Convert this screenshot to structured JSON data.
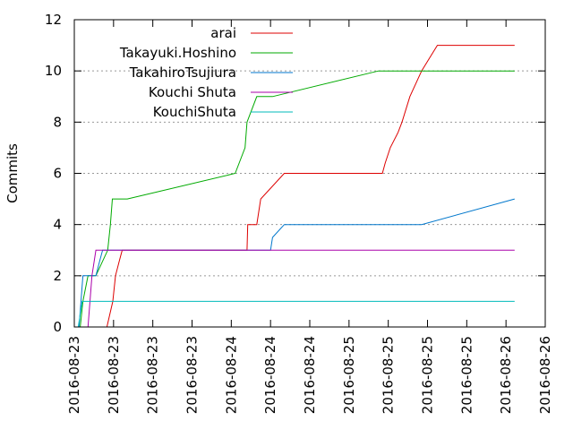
{
  "chart_data": {
    "type": "line",
    "ylabel": "Commits",
    "xlabel": "",
    "title": "",
    "ylim": [
      0,
      12
    ],
    "yticks": [
      0,
      2,
      4,
      6,
      8,
      10,
      12
    ],
    "xticks": [
      "2016-08-23",
      "2016-08-23",
      "2016-08-23",
      "2016-08-23",
      "2016-08-24",
      "2016-08-24",
      "2016-08-24",
      "2016-08-25",
      "2016-08-25",
      "2016-08-25",
      "2016-08-25",
      "2016-08-26",
      "2016-08-26"
    ],
    "xlim": [
      0,
      12
    ],
    "grid": true,
    "legend_position": "top-right",
    "series": [
      {
        "name": "arai",
        "color": "#dd0000",
        "points": [
          [
            0.83,
            0
          ],
          [
            0.98,
            1
          ],
          [
            1.05,
            2
          ],
          [
            1.15,
            2.6
          ],
          [
            1.22,
            3
          ],
          [
            4.4,
            3
          ],
          [
            4.42,
            4
          ],
          [
            4.65,
            4
          ],
          [
            4.75,
            5
          ],
          [
            5.35,
            6
          ],
          [
            7.85,
            6
          ],
          [
            7.92,
            6.4
          ],
          [
            8.05,
            7
          ],
          [
            8.25,
            7.6
          ],
          [
            8.35,
            8
          ],
          [
            8.55,
            9
          ],
          [
            8.85,
            10
          ],
          [
            9.05,
            10.5
          ],
          [
            9.25,
            11
          ],
          [
            11.22,
            11
          ]
        ]
      },
      {
        "name": "Takayuki.Hoshino",
        "color": "#00aa00",
        "points": [
          [
            0.15,
            0
          ],
          [
            0.22,
            1
          ],
          [
            0.35,
            2
          ],
          [
            0.55,
            2
          ],
          [
            0.85,
            3
          ],
          [
            0.92,
            4
          ],
          [
            0.97,
            5
          ],
          [
            1.35,
            5
          ],
          [
            4.1,
            6
          ],
          [
            4.35,
            7
          ],
          [
            4.4,
            8
          ],
          [
            4.65,
            9
          ],
          [
            5.05,
            9
          ],
          [
            7.75,
            10
          ],
          [
            11.22,
            10
          ]
        ]
      },
      {
        "name": "TakahiroTsujiura",
        "color": "#0077cc",
        "points": [
          [
            0.12,
            0
          ],
          [
            0.22,
            2
          ],
          [
            0.4,
            2
          ],
          [
            0.55,
            2
          ],
          [
            0.65,
            2.6
          ],
          [
            0.72,
            3
          ],
          [
            5.0,
            3
          ],
          [
            5.05,
            3.5
          ],
          [
            5.35,
            4
          ],
          [
            8.85,
            4
          ],
          [
            11.22,
            5
          ]
        ]
      },
      {
        "name": "Kouchi Shuta",
        "color": "#aa00aa",
        "points": [
          [
            0.35,
            0
          ],
          [
            0.4,
            1
          ],
          [
            0.45,
            2
          ],
          [
            0.55,
            3
          ],
          [
            11.22,
            3
          ]
        ]
      },
      {
        "name": "KouchiShuta",
        "color": "#00bbbb",
        "points": [
          [
            0.1,
            0
          ],
          [
            0.2,
            1
          ],
          [
            11.22,
            1
          ]
        ]
      }
    ]
  }
}
